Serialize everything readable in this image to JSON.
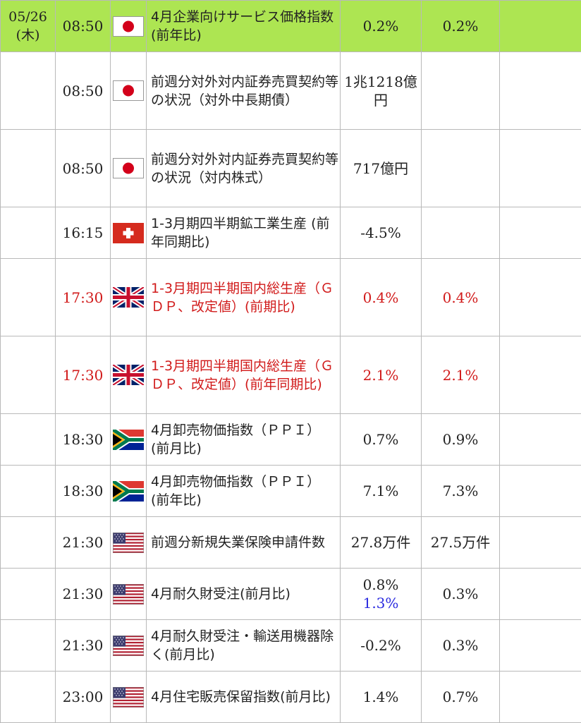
{
  "date": {
    "line1": "05/26",
    "line2": "(木)"
  },
  "rows": [
    {
      "time": "08:50",
      "flag": "japan-flag-icon",
      "indicator": "4月企業向けサービス価格指数(前年比)",
      "previous": "0.2%",
      "revised": "",
      "forecast": "0.2%",
      "result": "",
      "highlight": true,
      "red": false
    },
    {
      "time": "08:50",
      "flag": "japan-flag-icon",
      "indicator": "前週分対外対内証券売買契約等の状況（対外中長期債）",
      "previous": "1兆1218億円",
      "revised": "",
      "forecast": "",
      "result": "",
      "highlight": false,
      "red": false
    },
    {
      "time": "08:50",
      "flag": "japan-flag-icon",
      "indicator": "前週分対外対内証券売買契約等の状況（対内株式）",
      "previous": "717億円",
      "revised": "",
      "forecast": "",
      "result": "",
      "highlight": false,
      "red": false
    },
    {
      "time": "16:15",
      "flag": "switzerland-flag-icon",
      "indicator": "1-3月期四半期鉱工業生産 (前年同期比)",
      "previous": "-4.5%",
      "revised": "",
      "forecast": "",
      "result": "",
      "highlight": false,
      "red": false
    },
    {
      "time": "17:30",
      "flag": "uk-flag-icon",
      "indicator": "1-3月期四半期国内総生産（ＧＤＰ、改定値）(前期比)",
      "previous": "0.4%",
      "revised": "",
      "forecast": "0.4%",
      "result": "",
      "highlight": false,
      "red": true
    },
    {
      "time": "17:30",
      "flag": "uk-flag-icon",
      "indicator": "1-3月期四半期国内総生産（ＧＤＰ、改定値）(前年同期比)",
      "previous": "2.1%",
      "revised": "",
      "forecast": "2.1%",
      "result": "",
      "highlight": false,
      "red": true
    },
    {
      "time": "18:30",
      "flag": "south-africa-flag-icon",
      "indicator": "4月卸売物価指数（ＰＰＩ）(前月比)",
      "previous": "0.7%",
      "revised": "",
      "forecast": "0.9%",
      "result": "",
      "highlight": false,
      "red": false
    },
    {
      "time": "18:30",
      "flag": "south-africa-flag-icon",
      "indicator": "4月卸売物価指数（ＰＰＩ）(前年比)",
      "previous": "7.1%",
      "revised": "",
      "forecast": "7.3%",
      "result": "",
      "highlight": false,
      "red": false
    },
    {
      "time": "21:30",
      "flag": "usa-flag-icon",
      "indicator": "前週分新規失業保険申請件数",
      "previous": "27.8万件",
      "revised": "",
      "forecast": "27.5万件",
      "result": "",
      "highlight": false,
      "red": false
    },
    {
      "time": "21:30",
      "flag": "usa-flag-icon",
      "indicator": "4月耐久財受注(前月比)",
      "previous": "0.8%",
      "revised": "1.3%",
      "forecast": "0.3%",
      "result": "",
      "highlight": false,
      "red": false
    },
    {
      "time": "21:30",
      "flag": "usa-flag-icon",
      "indicator": "4月耐久財受注・輸送用機器除く(前月比)",
      "previous": "-0.2%",
      "revised": "",
      "forecast": "0.3%",
      "result": "",
      "highlight": false,
      "red": false
    },
    {
      "time": "23:00",
      "flag": "usa-flag-icon",
      "indicator": "4月住宅販売保留指数(前月比)",
      "previous": "1.4%",
      "revised": "",
      "forecast": "0.7%",
      "result": "",
      "highlight": false,
      "red": false
    }
  ]
}
